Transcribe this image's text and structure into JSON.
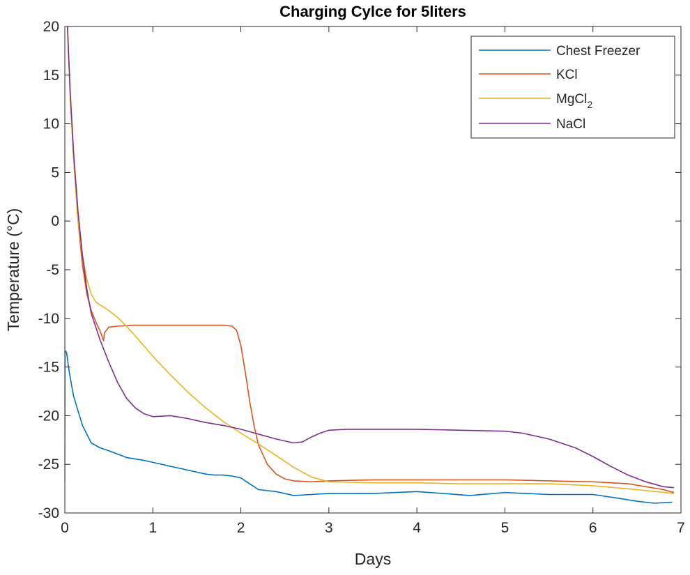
{
  "chart_data": {
    "type": "line",
    "title": "Charging Cylce for 5liters",
    "xlabel": "Days",
    "ylabel": "Temperature (°C)",
    "xlim": [
      0,
      7
    ],
    "ylim": [
      -30,
      20
    ],
    "xticks": [
      0,
      1,
      2,
      3,
      4,
      5,
      6,
      7
    ],
    "yticks": [
      -30,
      -25,
      -20,
      -15,
      -10,
      -5,
      0,
      5,
      10,
      15,
      20
    ],
    "grid": false,
    "legend_position": "top-right",
    "series": [
      {
        "name": "Chest Freezer",
        "color": "#0072BD",
        "x": [
          0,
          0.003,
          0.02,
          0.05,
          0.1,
          0.2,
          0.3,
          0.4,
          0.5,
          0.7,
          0.9,
          1.0,
          1.2,
          1.4,
          1.6,
          1.7,
          1.8,
          1.9,
          2.0,
          2.1,
          2.2,
          2.4,
          2.6,
          2.8,
          3.0,
          3.5,
          4.0,
          4.3,
          4.6,
          5.0,
          5.5,
          6.0,
          6.3,
          6.5,
          6.7,
          6.9
        ],
        "y": [
          -26.8,
          -13.3,
          -13.5,
          -15.5,
          -18.0,
          -21.0,
          -22.8,
          -23.3,
          -23.6,
          -24.3,
          -24.6,
          -24.8,
          -25.2,
          -25.6,
          -26.0,
          -26.1,
          -26.1,
          -26.2,
          -26.4,
          -27.0,
          -27.6,
          -27.8,
          -28.2,
          -28.1,
          -28.0,
          -28.0,
          -27.8,
          -28.0,
          -28.2,
          -27.9,
          -28.1,
          -28.1,
          -28.5,
          -28.8,
          -29.0,
          -28.9
        ]
      },
      {
        "name": "KCl",
        "color": "#D95319",
        "x": [
          0.03,
          0.06,
          0.1,
          0.15,
          0.2,
          0.25,
          0.3,
          0.35,
          0.4,
          0.44,
          0.45,
          0.5,
          0.6,
          0.8,
          1.0,
          1.2,
          1.4,
          1.6,
          1.8,
          1.9,
          1.95,
          2.0,
          2.05,
          2.1,
          2.15,
          2.2,
          2.3,
          2.4,
          2.5,
          2.6,
          2.8,
          3.0,
          3.5,
          4.0,
          4.5,
          5.0,
          5.5,
          6.0,
          6.4,
          6.8,
          6.92
        ],
        "y": [
          20.0,
          13.0,
          6.5,
          0.0,
          -4.5,
          -7.5,
          -9.2,
          -10.3,
          -11.3,
          -12.3,
          -11.5,
          -10.9,
          -10.8,
          -10.7,
          -10.7,
          -10.7,
          -10.7,
          -10.7,
          -10.7,
          -10.8,
          -11.2,
          -12.8,
          -15.5,
          -18.5,
          -21.0,
          -23.0,
          -25.0,
          -26.0,
          -26.5,
          -26.7,
          -26.8,
          -26.7,
          -26.6,
          -26.6,
          -26.6,
          -26.6,
          -26.7,
          -26.8,
          -27.0,
          -27.6,
          -27.9
        ]
      },
      {
        "name": "MgCl2",
        "color": "#EDB120",
        "x": [
          0.03,
          0.06,
          0.1,
          0.15,
          0.2,
          0.25,
          0.3,
          0.35,
          0.38,
          0.4,
          0.5,
          0.6,
          0.7,
          0.8,
          1.0,
          1.2,
          1.4,
          1.6,
          1.8,
          2.0,
          2.2,
          2.4,
          2.6,
          2.8,
          3.0,
          3.5,
          4.0,
          4.5,
          5.0,
          5.5,
          6.0,
          6.5,
          6.92
        ],
        "y": [
          20.0,
          13.0,
          6.5,
          0.0,
          -3.5,
          -6.0,
          -7.5,
          -8.3,
          -8.5,
          -8.6,
          -9.2,
          -9.9,
          -10.8,
          -11.8,
          -13.9,
          -15.8,
          -17.6,
          -19.2,
          -20.6,
          -21.8,
          -22.9,
          -24.1,
          -25.3,
          -26.3,
          -26.8,
          -26.9,
          -26.9,
          -27.0,
          -27.0,
          -27.0,
          -27.2,
          -27.6,
          -28.0
        ]
      },
      {
        "name": "NaCl",
        "color": "#7E2F8E",
        "x": [
          0.03,
          0.06,
          0.1,
          0.15,
          0.2,
          0.25,
          0.3,
          0.4,
          0.5,
          0.6,
          0.7,
          0.8,
          0.9,
          1.0,
          1.2,
          1.4,
          1.6,
          1.8,
          2.0,
          2.2,
          2.4,
          2.6,
          2.7,
          2.8,
          2.9,
          3.0,
          3.2,
          3.5,
          4.0,
          4.5,
          5.0,
          5.2,
          5.5,
          5.8,
          6.0,
          6.2,
          6.4,
          6.6,
          6.8,
          6.92
        ],
        "y": [
          20.0,
          13.5,
          7.0,
          1.0,
          -3.5,
          -7.0,
          -9.5,
          -12.2,
          -14.5,
          -16.6,
          -18.2,
          -19.2,
          -19.8,
          -20.1,
          -20.0,
          -20.3,
          -20.7,
          -21.0,
          -21.4,
          -21.9,
          -22.4,
          -22.8,
          -22.7,
          -22.2,
          -21.8,
          -21.5,
          -21.4,
          -21.4,
          -21.4,
          -21.5,
          -21.6,
          -21.8,
          -22.4,
          -23.3,
          -24.2,
          -25.2,
          -26.1,
          -26.8,
          -27.3,
          -27.4
        ]
      }
    ]
  },
  "legend": {
    "items": [
      {
        "label": "Chest Freezer",
        "sub": ""
      },
      {
        "label": "KCl",
        "sub": ""
      },
      {
        "label": "MgCl",
        "sub": "2"
      },
      {
        "label": "NaCl",
        "sub": ""
      }
    ]
  }
}
